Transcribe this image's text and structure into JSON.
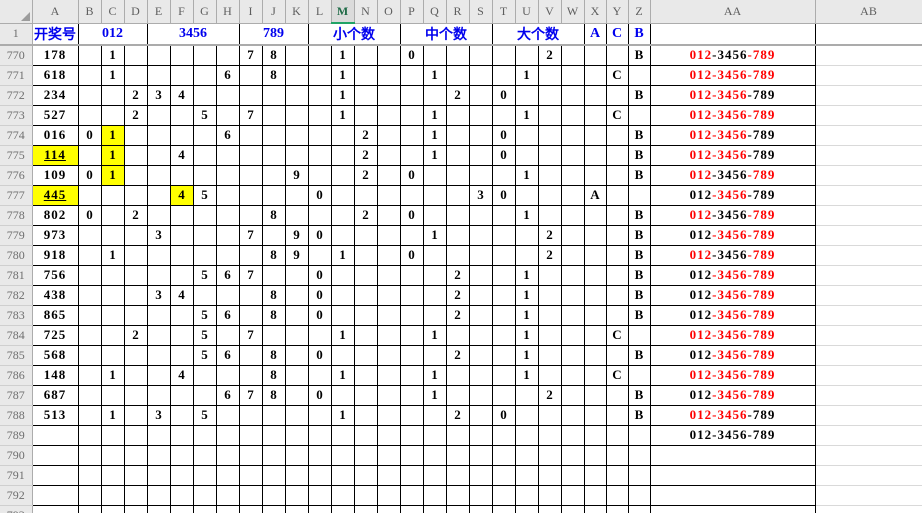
{
  "sheet": {
    "column_letters": [
      "A",
      "B",
      "C",
      "D",
      "E",
      "F",
      "G",
      "H",
      "I",
      "J",
      "K",
      "L",
      "M",
      "N",
      "O",
      "P",
      "Q",
      "R",
      "S",
      "T",
      "U",
      "V",
      "W",
      "X",
      "Y",
      "Z",
      "AA",
      "AB"
    ],
    "selected_column": "M",
    "colors": {
      "blue": "#0000EE",
      "red": "#FF0000",
      "black": "#000000",
      "highlight": "#FFFF00",
      "selection_green": "#21A366"
    },
    "row1": {
      "num": "1",
      "draw_header": "开奖号",
      "groups": [
        {
          "label": "012",
          "from": "B",
          "to": "D"
        },
        {
          "label": "3456",
          "from": "E",
          "to": "H"
        },
        {
          "label": "789",
          "from": "I",
          "to": "K"
        },
        {
          "label": "小个数",
          "from": "L",
          "to": "O"
        },
        {
          "label": "中个数",
          "from": "P",
          "to": "S"
        },
        {
          "label": "大个数",
          "from": "T",
          "to": "W"
        },
        {
          "label": "A",
          "from": "X",
          "to": "X"
        },
        {
          "label": "C",
          "from": "Y",
          "to": "Y"
        },
        {
          "label": "B",
          "from": "Z",
          "to": "Z"
        }
      ]
    },
    "aa_segments": [
      "012",
      "-3456",
      "-789"
    ],
    "rows": [
      {
        "num": "770",
        "draw": "178",
        "digits": [
          [
            "C",
            "1"
          ],
          [
            "I",
            "7"
          ],
          [
            "J",
            "8"
          ]
        ],
        "counts": [
          [
            "M",
            "1"
          ],
          [
            "P",
            "0"
          ],
          [
            "V",
            "2"
          ]
        ],
        "grade": [
          "Z",
          "B"
        ],
        "aa": [
          "red",
          "black",
          "red"
        ]
      },
      {
        "num": "771",
        "draw": "618",
        "digits": [
          [
            "C",
            "1"
          ],
          [
            "H",
            "6"
          ],
          [
            "J",
            "8"
          ]
        ],
        "counts": [
          [
            "M",
            "1"
          ],
          [
            "Q",
            "1"
          ],
          [
            "U",
            "1"
          ]
        ],
        "grade": [
          "Y",
          "C"
        ],
        "aa": [
          "red",
          "red",
          "red"
        ]
      },
      {
        "num": "772",
        "draw": "234",
        "digits": [
          [
            "D",
            "2"
          ],
          [
            "E",
            "3"
          ],
          [
            "F",
            "4"
          ]
        ],
        "counts": [
          [
            "M",
            "1"
          ],
          [
            "R",
            "2"
          ],
          [
            "T",
            "0"
          ]
        ],
        "grade": [
          "Z",
          "B"
        ],
        "aa": [
          "red",
          "red",
          "black"
        ]
      },
      {
        "num": "773",
        "draw": "527",
        "digits": [
          [
            "D",
            "2"
          ],
          [
            "G",
            "5"
          ],
          [
            "I",
            "7"
          ]
        ],
        "counts": [
          [
            "M",
            "1"
          ],
          [
            "Q",
            "1"
          ],
          [
            "U",
            "1"
          ]
        ],
        "grade": [
          "Y",
          "C"
        ],
        "aa": [
          "red",
          "red",
          "red"
        ]
      },
      {
        "num": "774",
        "draw": "016",
        "digits": [
          [
            "B",
            "0"
          ],
          [
            "C",
            "1",
            "hl"
          ],
          [
            "H",
            "6"
          ]
        ],
        "counts": [
          [
            "N",
            "2"
          ],
          [
            "Q",
            "1"
          ],
          [
            "T",
            "0"
          ]
        ],
        "grade": [
          "Z",
          "B"
        ],
        "aa": [
          "red",
          "red",
          "black"
        ]
      },
      {
        "num": "775",
        "draw": "114",
        "draw_style": "hl-ul",
        "digits": [
          [
            "C",
            "1",
            "hl"
          ],
          [
            "F",
            "4"
          ]
        ],
        "counts": [
          [
            "N",
            "2"
          ],
          [
            "Q",
            "1"
          ],
          [
            "T",
            "0"
          ]
        ],
        "grade": [
          "Z",
          "B"
        ],
        "aa": [
          "red",
          "red",
          "black"
        ]
      },
      {
        "num": "776",
        "draw": "109",
        "digits": [
          [
            "B",
            "0"
          ],
          [
            "C",
            "1",
            "hl"
          ],
          [
            "K",
            "9"
          ]
        ],
        "counts": [
          [
            "N",
            "2"
          ],
          [
            "P",
            "0"
          ],
          [
            "U",
            "1"
          ]
        ],
        "grade": [
          "Z",
          "B"
        ],
        "aa": [
          "red",
          "black",
          "red"
        ]
      },
      {
        "num": "777",
        "draw": "445",
        "draw_style": "hl-ul",
        "digits": [
          [
            "F",
            "4",
            "hl"
          ],
          [
            "G",
            "5"
          ]
        ],
        "counts": [
          [
            "L",
            "0"
          ],
          [
            "S",
            "3"
          ],
          [
            "T",
            "0"
          ]
        ],
        "grade": [
          "X",
          "A"
        ],
        "aa": [
          "black",
          "red",
          "black"
        ]
      },
      {
        "num": "778",
        "draw": "802",
        "digits": [
          [
            "B",
            "0"
          ],
          [
            "D",
            "2"
          ],
          [
            "J",
            "8"
          ]
        ],
        "counts": [
          [
            "N",
            "2"
          ],
          [
            "P",
            "0"
          ],
          [
            "U",
            "1"
          ]
        ],
        "grade": [
          "Z",
          "B"
        ],
        "aa": [
          "red",
          "black",
          "red"
        ]
      },
      {
        "num": "779",
        "draw": "973",
        "digits": [
          [
            "E",
            "3"
          ],
          [
            "I",
            "7"
          ],
          [
            "K",
            "9"
          ]
        ],
        "counts": [
          [
            "L",
            "0"
          ],
          [
            "Q",
            "1"
          ],
          [
            "V",
            "2"
          ]
        ],
        "grade": [
          "Z",
          "B"
        ],
        "aa": [
          "black",
          "red",
          "red"
        ]
      },
      {
        "num": "780",
        "draw": "918",
        "digits": [
          [
            "C",
            "1"
          ],
          [
            "J",
            "8"
          ],
          [
            "K",
            "9"
          ]
        ],
        "counts": [
          [
            "M",
            "1"
          ],
          [
            "P",
            "0"
          ],
          [
            "V",
            "2"
          ]
        ],
        "grade": [
          "Z",
          "B"
        ],
        "aa": [
          "red",
          "black",
          "red"
        ]
      },
      {
        "num": "781",
        "draw": "756",
        "digits": [
          [
            "G",
            "5"
          ],
          [
            "H",
            "6"
          ],
          [
            "I",
            "7"
          ]
        ],
        "counts": [
          [
            "L",
            "0"
          ],
          [
            "R",
            "2"
          ],
          [
            "U",
            "1"
          ]
        ],
        "grade": [
          "Z",
          "B"
        ],
        "aa": [
          "black",
          "red",
          "red"
        ]
      },
      {
        "num": "782",
        "draw": "438",
        "digits": [
          [
            "E",
            "3"
          ],
          [
            "F",
            "4"
          ],
          [
            "J",
            "8"
          ]
        ],
        "counts": [
          [
            "L",
            "0"
          ],
          [
            "R",
            "2"
          ],
          [
            "U",
            "1"
          ]
        ],
        "grade": [
          "Z",
          "B"
        ],
        "aa": [
          "black",
          "red",
          "red"
        ]
      },
      {
        "num": "783",
        "draw": "865",
        "digits": [
          [
            "G",
            "5"
          ],
          [
            "H",
            "6"
          ],
          [
            "J",
            "8"
          ]
        ],
        "counts": [
          [
            "L",
            "0"
          ],
          [
            "R",
            "2"
          ],
          [
            "U",
            "1"
          ]
        ],
        "grade": [
          "Z",
          "B"
        ],
        "aa": [
          "black",
          "red",
          "red"
        ]
      },
      {
        "num": "784",
        "draw": "725",
        "digits": [
          [
            "D",
            "2"
          ],
          [
            "G",
            "5"
          ],
          [
            "I",
            "7"
          ]
        ],
        "counts": [
          [
            "M",
            "1"
          ],
          [
            "Q",
            "1"
          ],
          [
            "U",
            "1"
          ]
        ],
        "grade": [
          "Y",
          "C"
        ],
        "aa": [
          "red",
          "red",
          "red"
        ]
      },
      {
        "num": "785",
        "draw": "568",
        "digits": [
          [
            "G",
            "5"
          ],
          [
            "H",
            "6"
          ],
          [
            "J",
            "8"
          ]
        ],
        "counts": [
          [
            "L",
            "0"
          ],
          [
            "R",
            "2"
          ],
          [
            "U",
            "1"
          ]
        ],
        "grade": [
          "Z",
          "B"
        ],
        "aa": [
          "black",
          "red",
          "red"
        ]
      },
      {
        "num": "786",
        "draw": "148",
        "digits": [
          [
            "C",
            "1"
          ],
          [
            "F",
            "4"
          ],
          [
            "J",
            "8"
          ]
        ],
        "counts": [
          [
            "M",
            "1"
          ],
          [
            "Q",
            "1"
          ],
          [
            "U",
            "1"
          ]
        ],
        "grade": [
          "Y",
          "C"
        ],
        "aa": [
          "red",
          "red",
          "red"
        ]
      },
      {
        "num": "787",
        "draw": "687",
        "digits": [
          [
            "H",
            "6"
          ],
          [
            "I",
            "7"
          ],
          [
            "J",
            "8"
          ]
        ],
        "counts": [
          [
            "L",
            "0"
          ],
          [
            "Q",
            "1"
          ],
          [
            "V",
            "2"
          ]
        ],
        "grade": [
          "Z",
          "B"
        ],
        "aa": [
          "black",
          "red",
          "red"
        ]
      },
      {
        "num": "788",
        "draw": "513",
        "digits": [
          [
            "C",
            "1"
          ],
          [
            "E",
            "3"
          ],
          [
            "G",
            "5"
          ]
        ],
        "counts": [
          [
            "M",
            "1"
          ],
          [
            "R",
            "2"
          ],
          [
            "T",
            "0"
          ]
        ],
        "grade": [
          "Z",
          "B"
        ],
        "aa": [
          "red",
          "red",
          "black"
        ]
      },
      {
        "num": "789",
        "aa": [
          "black",
          "black",
          "black"
        ]
      },
      {
        "num": "790"
      },
      {
        "num": "791"
      },
      {
        "num": "792"
      },
      {
        "num": "793"
      }
    ]
  }
}
